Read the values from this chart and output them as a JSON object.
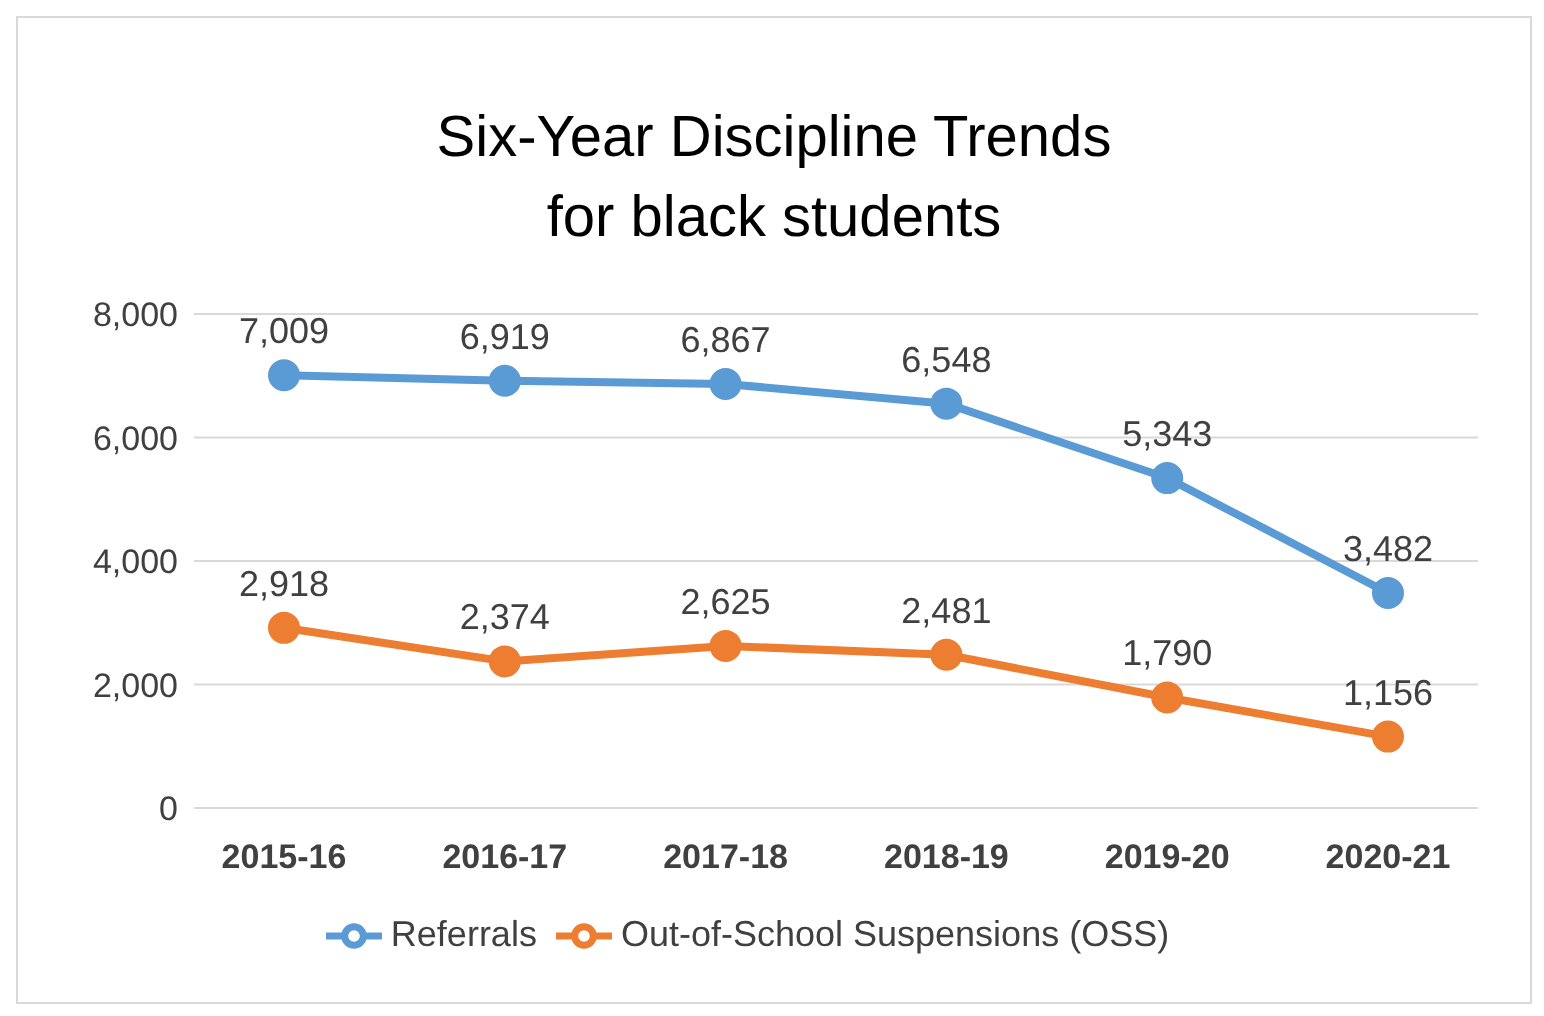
{
  "chart_data": {
    "type": "line",
    "title": "Six-Year Discipline Trends for black students",
    "categories": [
      "2015-16",
      "2016-17",
      "2017-18",
      "2018-19",
      "2019-20",
      "2020-21"
    ],
    "series": [
      {
        "name": "Referrals",
        "color": "#5b9bd5",
        "values": [
          7009,
          6919,
          6867,
          6548,
          5343,
          3482
        ],
        "value_labels": [
          "7,009",
          "6,919",
          "6,867",
          "6,548",
          "5,343",
          "3,482"
        ]
      },
      {
        "name": "Out-of-School Suspensions (OSS)",
        "color": "#ed7d31",
        "values": [
          2918,
          2374,
          2625,
          2481,
          1790,
          1156
        ],
        "value_labels": [
          "2,918",
          "2,374",
          "2,625",
          "2,481",
          "1,790",
          "1,156"
        ]
      }
    ],
    "ylim": [
      0,
      8000
    ],
    "yticks": [
      0,
      {
        "value": 2000,
        "label": "2,000"
      },
      {
        "value": 4000,
        "label": "4,000"
      },
      {
        "value": 6000,
        "label": "6,000"
      },
      {
        "value": 8000,
        "label": "8,000"
      }
    ],
    "grid": "y",
    "legend": "bottom",
    "marker": "circle"
  }
}
